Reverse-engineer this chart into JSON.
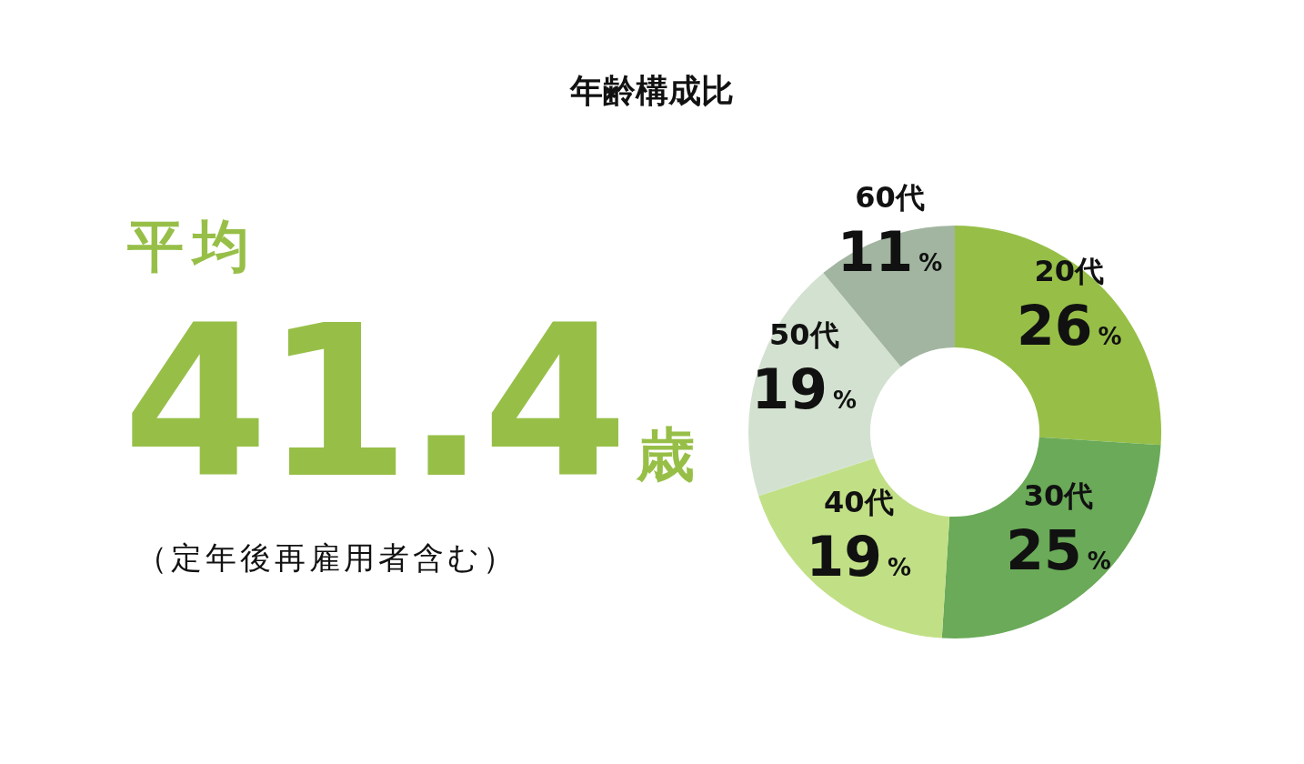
{
  "chart_data": {
    "type": "donut",
    "title": "年齢構成比",
    "categories": [
      "20代",
      "30代",
      "40代",
      "50代",
      "60代"
    ],
    "values": [
      26,
      25,
      19,
      19,
      11
    ],
    "colors": [
      "#97bf48",
      "#6aaa58",
      "#c1e086",
      "#d3e2d0",
      "#a2b5a0"
    ],
    "value_labels": [
      "26%",
      "25%",
      "19%",
      "19%",
      "11%"
    ],
    "annotations": [
      "平均",
      "41.4",
      "歳",
      "（定年後再雇用者含む）"
    ]
  }
}
